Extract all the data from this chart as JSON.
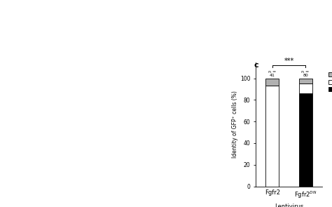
{
  "categories": [
    "Fgfr2",
    "Fgfr2$^{DN}$"
  ],
  "xlabel": "Lentivirus",
  "ylabel": "Identity of GFP⁺ cells (%)",
  "panel_label": "c",
  "ylim": [
    0,
    100
  ],
  "yticks": [
    0,
    20,
    40,
    60,
    80,
    100
  ],
  "n_values": [
    "n =\n41",
    "n =\n80"
  ],
  "AT1_values": [
    0,
    86
  ],
  "AT2_values": [
    93,
    9
  ],
  "BP_values": [
    7,
    5
  ],
  "AT1_color": "#000000",
  "AT2_color": "#ffffff",
  "BP_color": "#b0b0b0",
  "bar_edge_color": "#000000",
  "bar_width": 0.4,
  "significance": "***",
  "fig_width": 4.74,
  "fig_height": 2.95,
  "bg_color": "#ffffff"
}
